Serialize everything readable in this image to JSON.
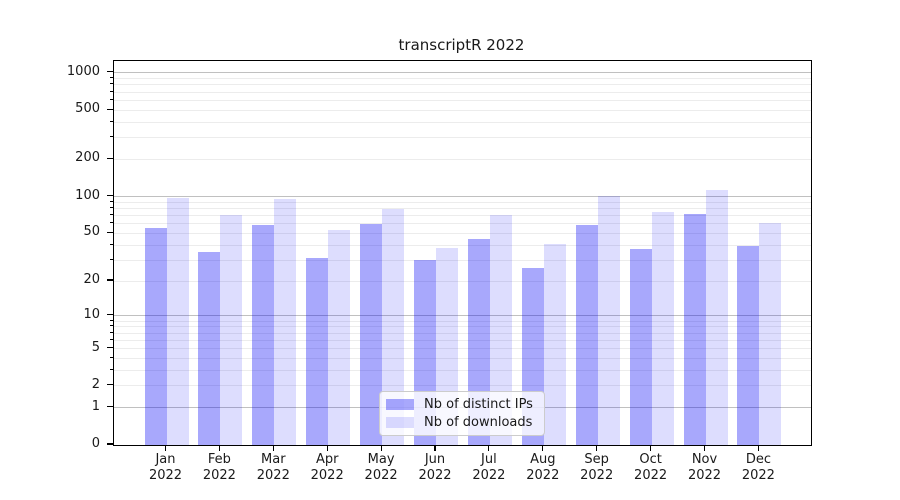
{
  "title": "transcriptR 2022",
  "chart_data": {
    "type": "bar",
    "title": "transcriptR 2022",
    "y_scale": "log1p",
    "ylim": [
      0,
      1250
    ],
    "grid": true,
    "legend_position": "lower center",
    "y_tick_values": [
      1000,
      500,
      200,
      100,
      50,
      20,
      10,
      5,
      2,
      1,
      0
    ],
    "y_tick_labels": [
      "1000",
      "500",
      "200",
      "100",
      "50",
      "20",
      "10",
      "5",
      "2",
      "1",
      "0"
    ],
    "categories": [
      {
        "month": "Jan",
        "year": "2022"
      },
      {
        "month": "Feb",
        "year": "2022"
      },
      {
        "month": "Mar",
        "year": "2022"
      },
      {
        "month": "Apr",
        "year": "2022"
      },
      {
        "month": "May",
        "year": "2022"
      },
      {
        "month": "Jun",
        "year": "2022"
      },
      {
        "month": "Jul",
        "year": "2022"
      },
      {
        "month": "Aug",
        "year": "2022"
      },
      {
        "month": "Sep",
        "year": "2022"
      },
      {
        "month": "Oct",
        "year": "2022"
      },
      {
        "month": "Nov",
        "year": "2022"
      },
      {
        "month": "Dec",
        "year": "2022"
      }
    ],
    "series": [
      {
        "name": "Nb of distinct IPs",
        "color": "#0000F557",
        "values": [
          55,
          35,
          58,
          31,
          60,
          30,
          45,
          26,
          59,
          37,
          72,
          39
        ]
      },
      {
        "name": "Nb of downloads",
        "color": "#0000F522",
        "values": [
          97,
          70,
          95,
          53,
          79,
          38,
          70,
          41,
          101,
          75,
          113,
          61
        ]
      }
    ],
    "colors": {
      "grid_major": "#c0c0c0",
      "grid_minor": "#ececec",
      "axis": "#000000",
      "text": "#1a1a1a",
      "legend_border": "#cccccc"
    }
  }
}
